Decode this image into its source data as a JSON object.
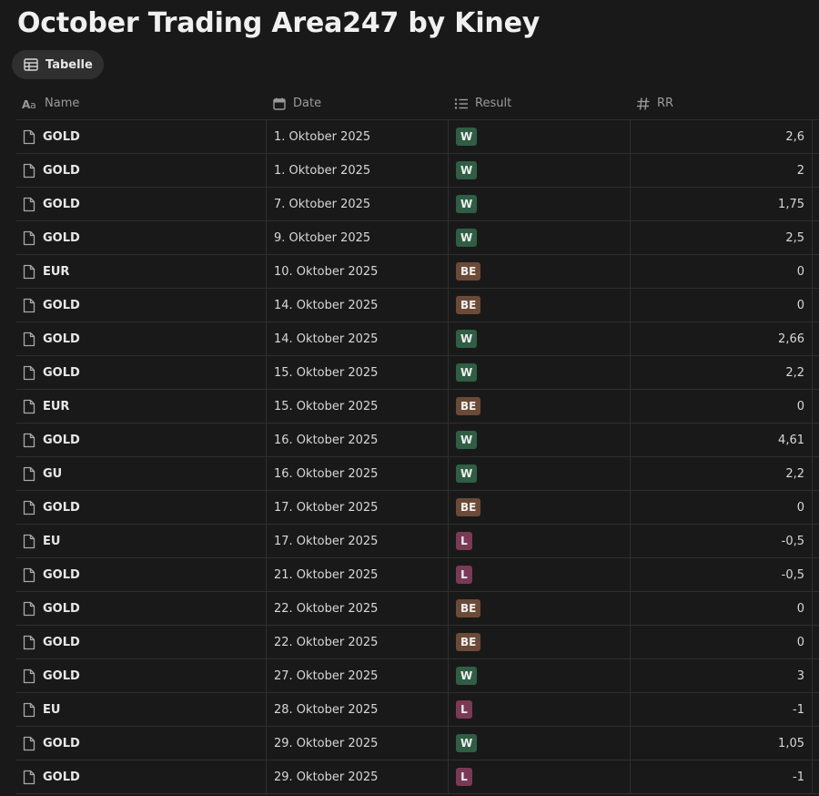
{
  "page": {
    "title": "October Trading Area247 by Kiney"
  },
  "view_tab": {
    "label": "Tabelle",
    "icon": "table-icon"
  },
  "columns": [
    {
      "key": "name",
      "label": "Name",
      "icon": "text-property-icon"
    },
    {
      "key": "date",
      "label": "Date",
      "icon": "calendar-icon"
    },
    {
      "key": "result",
      "label": "Result",
      "icon": "list-icon"
    },
    {
      "key": "rr",
      "label": "RR",
      "icon": "hash-icon"
    }
  ],
  "badge_colors": {
    "W": "#2f5e45",
    "BE": "#6b4a38",
    "L": "#7a3a55"
  },
  "rows": [
    {
      "name": "GOLD",
      "date": "1. Oktober 2025",
      "result": "W",
      "rr": "2,6"
    },
    {
      "name": "GOLD",
      "date": "1. Oktober 2025",
      "result": "W",
      "rr": "2"
    },
    {
      "name": "GOLD",
      "date": "7. Oktober 2025",
      "result": "W",
      "rr": "1,75"
    },
    {
      "name": "GOLD",
      "date": "9. Oktober 2025",
      "result": "W",
      "rr": "2,5"
    },
    {
      "name": "EUR",
      "date": "10. Oktober 2025",
      "result": "BE",
      "rr": "0"
    },
    {
      "name": "GOLD",
      "date": "14. Oktober 2025",
      "result": "BE",
      "rr": "0"
    },
    {
      "name": "GOLD",
      "date": "14. Oktober 2025",
      "result": "W",
      "rr": "2,66"
    },
    {
      "name": "GOLD",
      "date": "15. Oktober 2025",
      "result": "W",
      "rr": "2,2"
    },
    {
      "name": "EUR",
      "date": "15. Oktober 2025",
      "result": "BE",
      "rr": "0"
    },
    {
      "name": "GOLD",
      "date": "16. Oktober 2025",
      "result": "W",
      "rr": "4,61"
    },
    {
      "name": "GU",
      "date": "16. Oktober 2025",
      "result": "W",
      "rr": "2,2"
    },
    {
      "name": "GOLD",
      "date": "17. Oktober 2025",
      "result": "BE",
      "rr": "0"
    },
    {
      "name": "EU",
      "date": "17. Oktober 2025",
      "result": "L",
      "rr": "-0,5"
    },
    {
      "name": "GOLD",
      "date": "21. Oktober 2025",
      "result": "L",
      "rr": "-0,5"
    },
    {
      "name": "GOLD",
      "date": "22. Oktober 2025",
      "result": "BE",
      "rr": "0"
    },
    {
      "name": "GOLD",
      "date": "22. Oktober 2025",
      "result": "BE",
      "rr": "0"
    },
    {
      "name": "GOLD",
      "date": "27. Oktober 2025",
      "result": "W",
      "rr": "3"
    },
    {
      "name": "EU",
      "date": "28. Oktober 2025",
      "result": "L",
      "rr": "-1"
    },
    {
      "name": "GOLD",
      "date": "29. Oktober 2025",
      "result": "W",
      "rr": "1,05"
    },
    {
      "name": "GOLD",
      "date": "29. Oktober 2025",
      "result": "L",
      "rr": "-1"
    }
  ]
}
